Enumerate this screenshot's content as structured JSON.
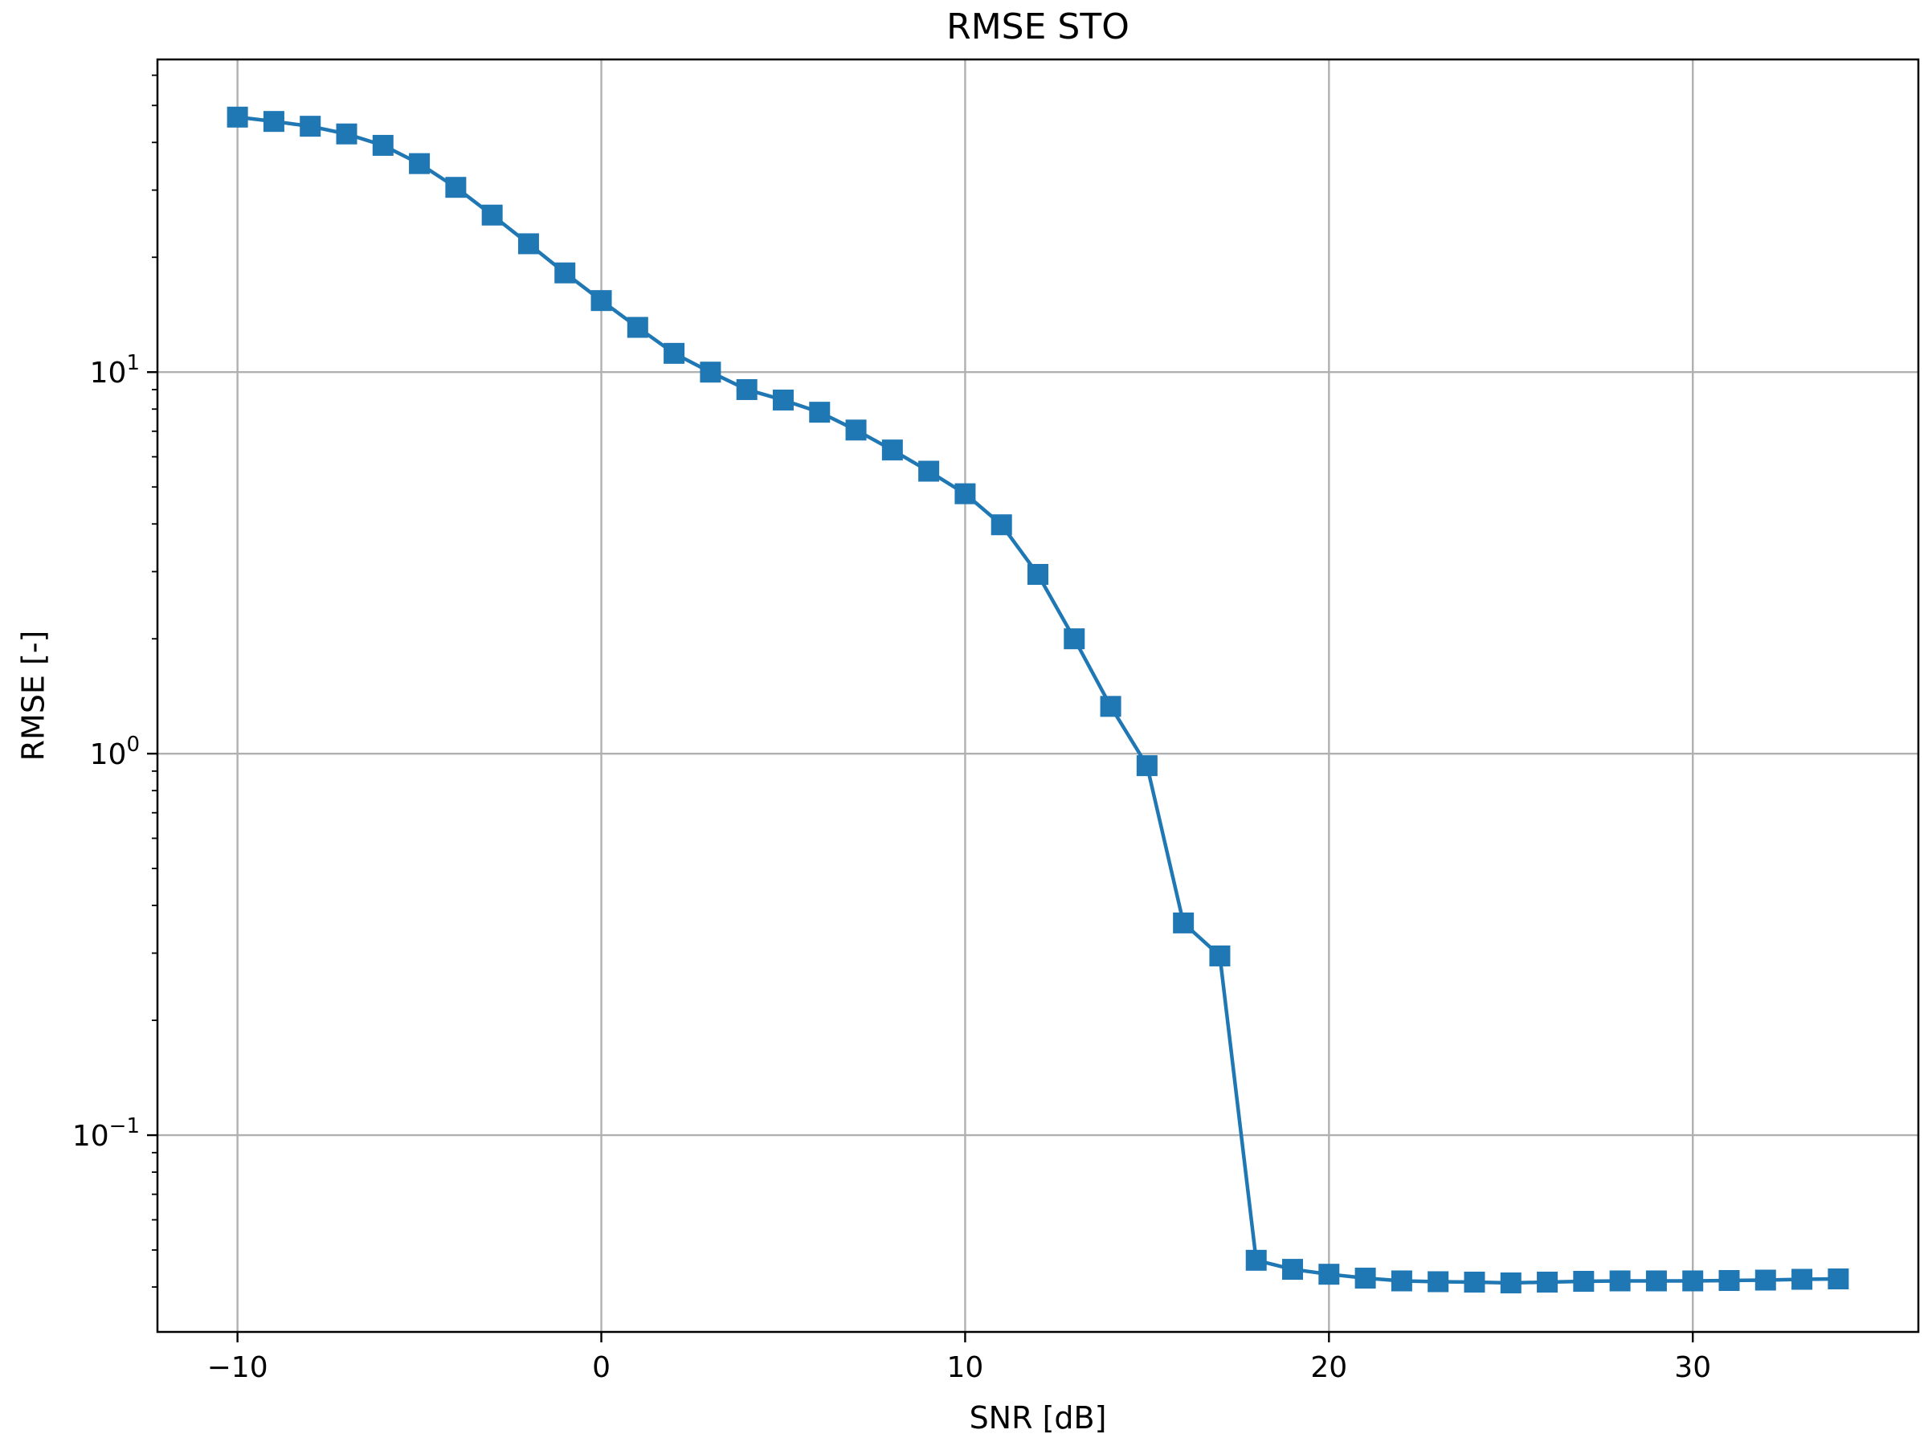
{
  "chart_data": {
    "type": "line",
    "title": "RMSE STO",
    "xlabel": "SNR [dB]",
    "ylabel": "RMSE [-]",
    "xscale": "linear",
    "yscale": "log",
    "xlim": [
      -12.2,
      36.2
    ],
    "ylim": [
      0.0305,
      66
    ],
    "grid": true,
    "x_ticks": [
      -10,
      0,
      10,
      20,
      30
    ],
    "x_tick_labels": [
      "−10",
      "0",
      "10",
      "20",
      "30"
    ],
    "y_ticks": [
      0.1,
      1,
      10
    ],
    "y_tick_labels": [
      {
        "base": "10",
        "exp": "−1"
      },
      {
        "base": "10",
        "exp": "0"
      },
      {
        "base": "10",
        "exp": "1"
      }
    ],
    "series": [
      {
        "marker": "square",
        "color": "#1f77b4",
        "x": [
          -10,
          -9,
          -8,
          -7,
          -6,
          -5,
          -4,
          -3,
          -2,
          -1,
          0,
          1,
          2,
          3,
          4,
          5,
          6,
          7,
          8,
          9,
          10,
          11,
          12,
          13,
          14,
          15,
          16,
          17,
          18,
          19,
          20,
          21,
          22,
          23,
          24,
          25,
          26,
          27,
          28,
          29,
          30,
          31,
          32,
          33,
          34
        ],
        "y": [
          46.6,
          45.4,
          44.1,
          42.1,
          39.3,
          35.2,
          30.5,
          25.8,
          21.7,
          18.2,
          15.4,
          13.1,
          11.2,
          10.0,
          9.0,
          8.45,
          7.85,
          7.05,
          6.25,
          5.5,
          4.8,
          3.98,
          2.95,
          2.0,
          1.33,
          0.93,
          0.36,
          0.295,
          0.047,
          0.0445,
          0.0432,
          0.0422,
          0.0415,
          0.0413,
          0.0412,
          0.041,
          0.0412,
          0.0414,
          0.0415,
          0.0415,
          0.0415,
          0.0416,
          0.0417,
          0.0419,
          0.042
        ]
      }
    ]
  }
}
